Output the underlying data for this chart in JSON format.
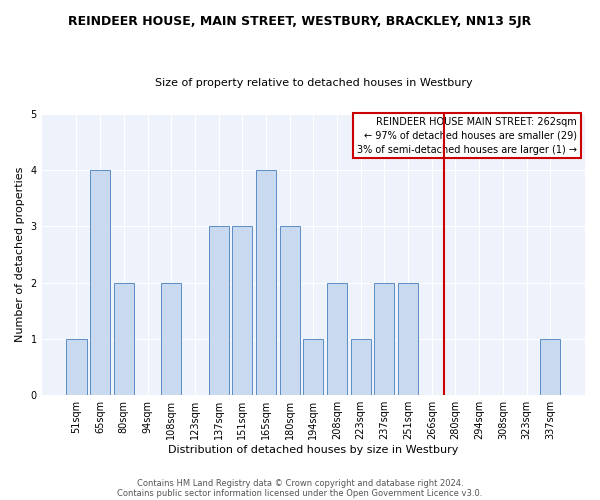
{
  "title": "REINDEER HOUSE, MAIN STREET, WESTBURY, BRACKLEY, NN13 5JR",
  "subtitle": "Size of property relative to detached houses in Westbury",
  "xlabel": "Distribution of detached houses by size in Westbury",
  "ylabel": "Number of detached properties",
  "bar_labels": [
    "51sqm",
    "65sqm",
    "80sqm",
    "94sqm",
    "108sqm",
    "123sqm",
    "137sqm",
    "151sqm",
    "165sqm",
    "180sqm",
    "194sqm",
    "208sqm",
    "223sqm",
    "237sqm",
    "251sqm",
    "266sqm",
    "280sqm",
    "294sqm",
    "308sqm",
    "323sqm",
    "337sqm"
  ],
  "bar_values": [
    1,
    4,
    2,
    0,
    2,
    0,
    3,
    3,
    4,
    3,
    1,
    2,
    1,
    2,
    2,
    0,
    0,
    0,
    0,
    0,
    1
  ],
  "bar_color": "#c8d9f0",
  "bar_edgecolor": "#5b8ec4",
  "bar_linewidth": 0.7,
  "bar_width": 0.85,
  "vline_index": 15.5,
  "vline_color": "#cc0000",
  "vline_linewidth": 1.5,
  "legend_title": "REINDEER HOUSE MAIN STREET: 262sqm",
  "legend_line1": "← 97% of detached houses are smaller (29)",
  "legend_line2": "3% of semi-detached houses are larger (1) →",
  "legend_box_edgecolor": "#cc0000",
  "legend_box_facecolor": "white",
  "ylim": [
    0,
    5
  ],
  "yticks": [
    0,
    1,
    2,
    3,
    4,
    5
  ],
  "plot_bg_color": "#eef2fa",
  "fig_bg_color": "white",
  "grid_color": "white",
  "footer_line1": "Contains HM Land Registry data © Crown copyright and database right 2024.",
  "footer_line2": "Contains public sector information licensed under the Open Government Licence v3.0.",
  "title_fontsize": 9,
  "subtitle_fontsize": 8,
  "tick_fontsize": 7,
  "ylabel_fontsize": 8,
  "xlabel_fontsize": 8,
  "legend_fontsize": 7,
  "footer_fontsize": 6
}
